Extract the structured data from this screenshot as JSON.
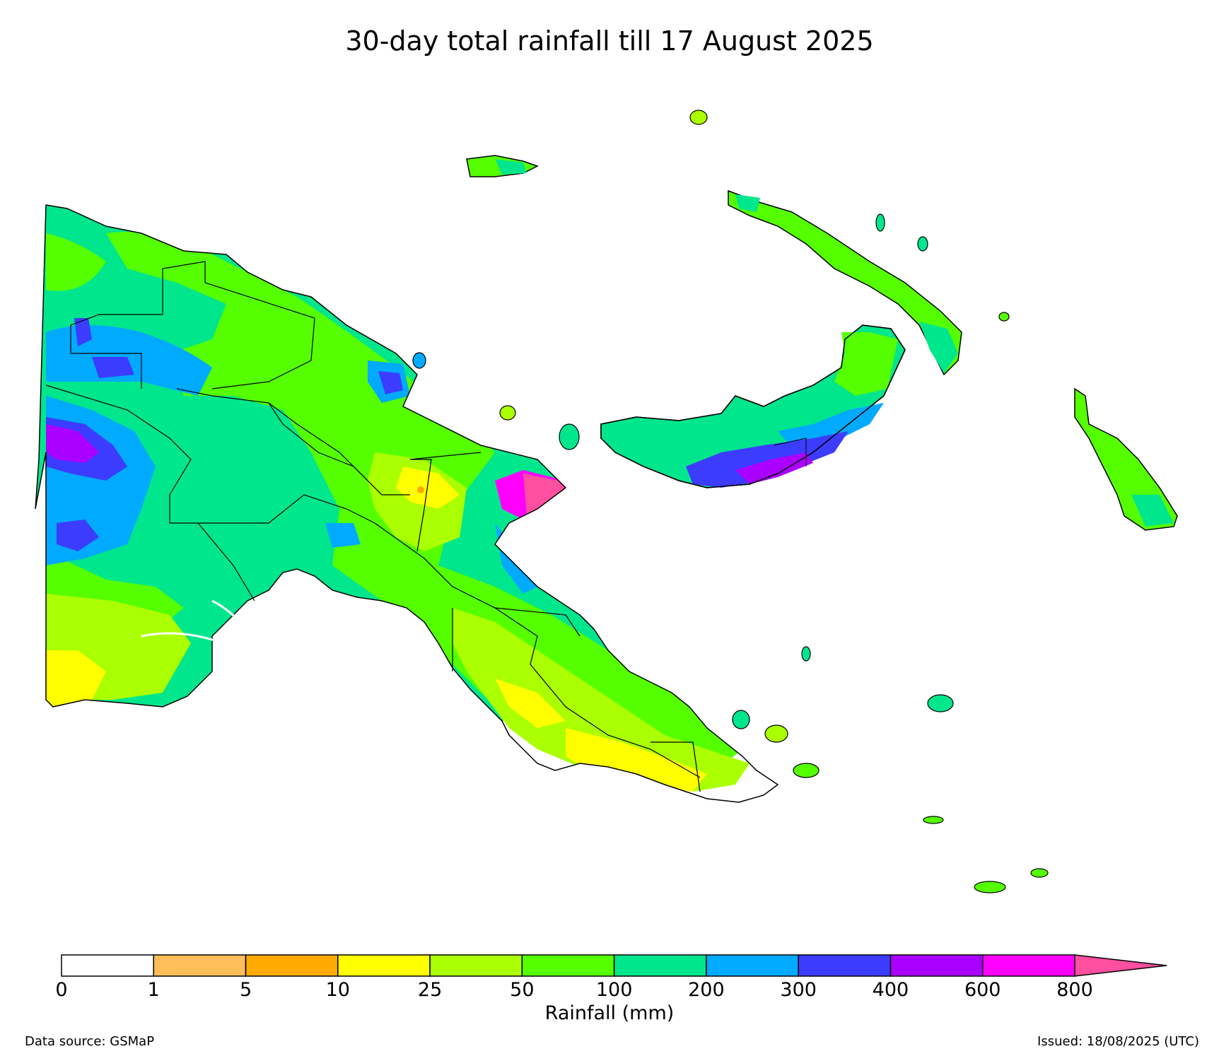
{
  "title": "30-day total rainfall till 17 August 2025",
  "colorbar": {
    "label": "Rainfall (mm)",
    "ticks": [
      "0",
      "1",
      "5",
      "10",
      "25",
      "50",
      "100",
      "200",
      "300",
      "400",
      "600",
      "800"
    ],
    "colors": [
      "#ffffff",
      "#ffbe5a",
      "#ffaa00",
      "#ffff00",
      "#aaff00",
      "#55ff00",
      "#00e68c",
      "#00aaff",
      "#3c3cff",
      "#aa00ff",
      "#ff00ff",
      "#ff4fa0"
    ],
    "extend": "max"
  },
  "footer": {
    "source": "Data source: GSMaP",
    "issued": "Issued: 18/08/2025 (UTC)"
  },
  "map": {
    "region": "Papua New Guinea",
    "variable": "30-day total rainfall",
    "units": "mm"
  }
}
